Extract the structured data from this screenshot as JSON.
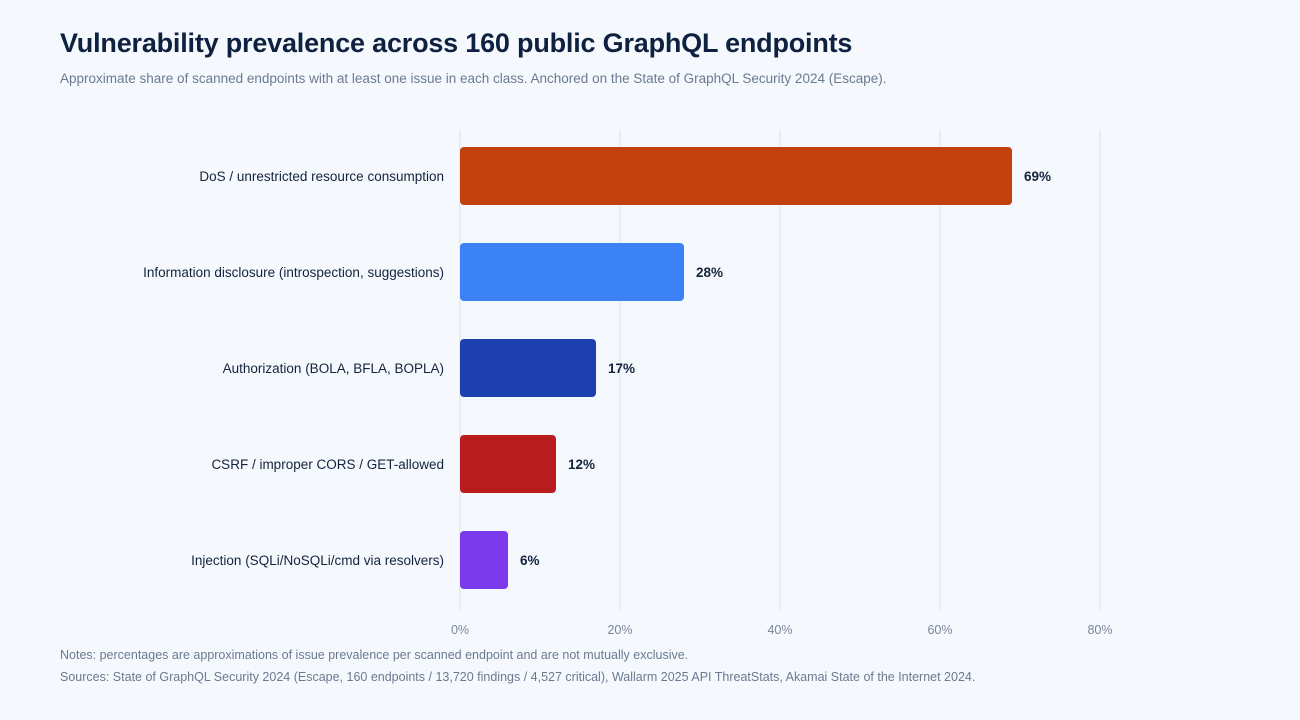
{
  "chart_data": {
    "type": "bar",
    "orientation": "horizontal",
    "title": "Vulnerability prevalence across 160 public GraphQL endpoints",
    "subtitle": "Approximate share of scanned endpoints with at least one issue in each class. Anchored on the State of GraphQL Security 2024 (Escape).",
    "categories": [
      "DoS / unrestricted resource consumption",
      "Information disclosure (introspection, suggestions)",
      "Authorization (BOLA, BFLA, BOPLA)",
      "CSRF / improper CORS / GET-allowed",
      "Injection (SQLi/NoSQLi/cmd via resolvers)"
    ],
    "values": [
      69,
      28,
      17,
      12,
      6
    ],
    "value_labels": [
      "69%",
      "28%",
      "17%",
      "12%",
      "6%"
    ],
    "colors": [
      "#c2410c",
      "#3b82f6",
      "#1e40af",
      "#b91c1c",
      "#7c3aed"
    ],
    "xlim": [
      0,
      80
    ],
    "xticks": [
      0,
      20,
      40,
      60,
      80
    ],
    "xtick_labels": [
      "0%",
      "20%",
      "40%",
      "60%",
      "80%"
    ],
    "grid": true,
    "xlabel": "",
    "ylabel": ""
  },
  "notes": "Notes: percentages are approximations of issue prevalence per scanned endpoint and are not mutually exclusive.",
  "sources": "Sources: State of GraphQL Security 2024 (Escape, 160 endpoints / 13,720 findings / 4,527 critical), Wallarm 2025 API ThreatStats, Akamai State of the Internet 2024."
}
